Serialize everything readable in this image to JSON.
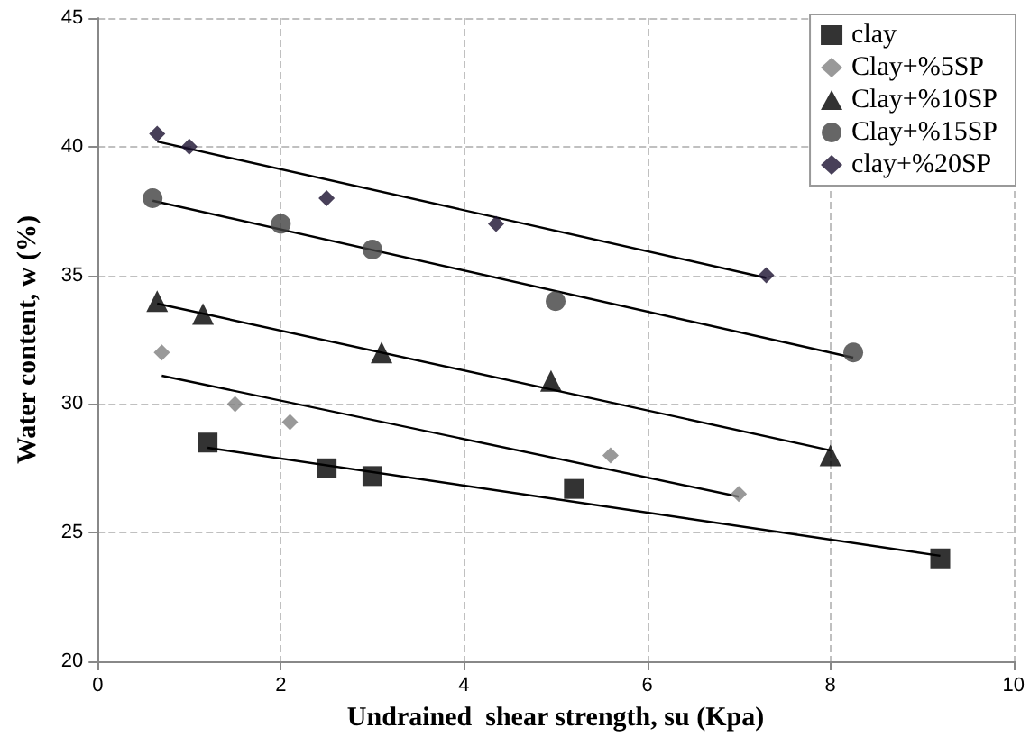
{
  "chart_data": {
    "type": "scatter",
    "xlabel": "Undrained  shear strength, su (Kpa)",
    "ylabel": "Water content, w (%)",
    "xlim": [
      0,
      10
    ],
    "xticks": [
      0,
      2,
      4,
      6,
      8,
      10
    ],
    "ylim": [
      20,
      45
    ],
    "yticks": [
      20,
      25,
      30,
      35,
      40,
      45
    ],
    "grid": true,
    "legend": "top right",
    "series": [
      {
        "name": "clay",
        "color": "#000000",
        "marker": "square",
        "x": [
          1.2,
          2.5,
          3,
          5.2,
          9.2
        ],
        "values": [
          28.5,
          27.5,
          27.2,
          26.7,
          24
        ]
      },
      {
        "name": "Clay+%5SP",
        "color": "#808080",
        "marker": "diamond",
        "x": [
          0.7,
          1.5,
          2.1,
          5.6,
          7
        ],
        "values": [
          32,
          30,
          29.3,
          28,
          26.5
        ]
      },
      {
        "name": "Clay+%10SP",
        "color": "#000000",
        "marker": "triangle",
        "x": [
          0.65,
          1.15,
          3.1,
          4.95,
          8
        ],
        "values": [
          34,
          33.5,
          32,
          30.9,
          28
        ]
      },
      {
        "name": "Clay+%15SP",
        "color": "#404040",
        "marker": "circle",
        "x": [
          0.6,
          2,
          3,
          5,
          8.25
        ],
        "values": [
          38,
          37,
          36,
          34,
          32
        ]
      },
      {
        "name": "clay+%20SP",
        "color": "#1a1030",
        "marker": "diamond",
        "x": [
          0.65,
          1,
          2.5,
          4.35,
          7.3
        ],
        "values": [
          40.5,
          40,
          38,
          37,
          35
        ]
      },
      {
        "type": "line",
        "color": "#000000",
        "marker": "none",
        "x": [
          1.2,
          9.2
        ],
        "values": [
          28.3,
          24.1
        ]
      },
      {
        "type": "line",
        "color": "#000000",
        "marker": "none",
        "x": [
          0.7,
          7
        ],
        "values": [
          31.1,
          26.4
        ]
      },
      {
        "type": "line",
        "color": "#000000",
        "marker": "none",
        "x": [
          0.65,
          8
        ],
        "values": [
          33.9,
          28.2
        ]
      },
      {
        "type": "line",
        "color": "#000000",
        "marker": "none",
        "x": [
          0.6,
          8.25
        ],
        "values": [
          37.9,
          31.8
        ]
      },
      {
        "type": "line",
        "color": "#000000",
        "marker": "none",
        "x": [
          0.65,
          7.3
        ],
        "values": [
          40.2,
          34.9
        ]
      }
    ]
  }
}
